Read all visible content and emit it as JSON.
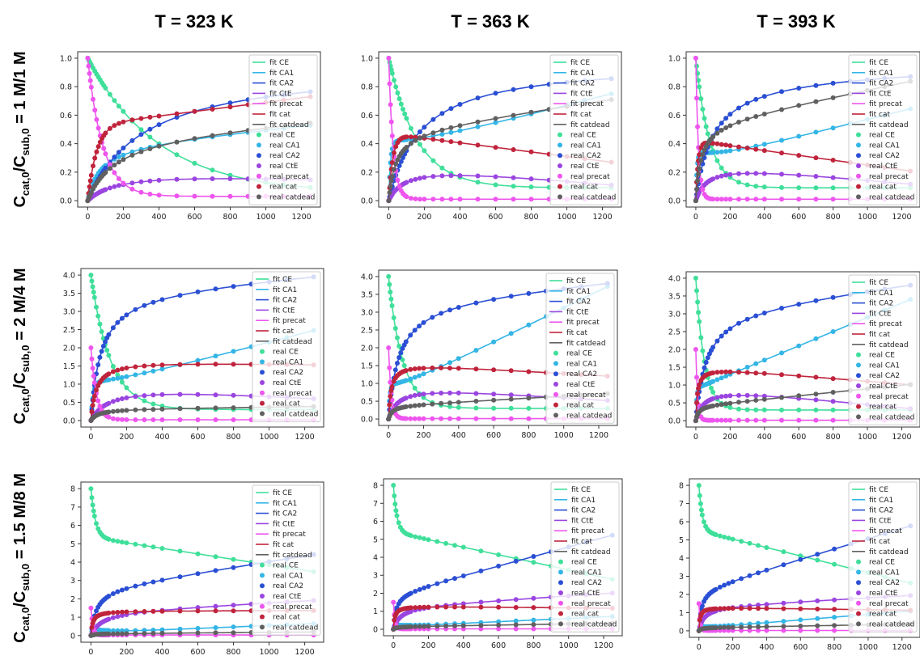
{
  "column_titles": [
    "T = 323 K",
    "T = 363 K",
    "T = 393 K"
  ],
  "row_labels": [
    {
      "main": "C",
      "sub1": "cat,0",
      "mid": "/C",
      "sub2": "sub,0",
      "rest": " = 1 M/1 M"
    },
    {
      "main": "C",
      "sub1": "cat,0",
      "mid": "/C",
      "sub2": "sub,0",
      "rest": " = 2 M/4 M"
    },
    {
      "main": "C",
      "sub1": "cat,0",
      "mid": "/C",
      "sub2": "sub,0",
      "rest": " = 1.5 M/8 M"
    }
  ],
  "legend": [
    "fit CE",
    "fit CA1",
    "fit CA2",
    "fit CtE",
    "fit precat",
    "fit cat",
    "fit catdead",
    "real CE",
    "real CA1",
    "real CA2",
    "real CtE",
    "real precat",
    "real cat",
    "real catdead"
  ],
  "colors": {
    "CE": "#3fdf9a",
    "CA1": "#33b5e6",
    "CA2": "#2a4fd4",
    "CtE": "#9a45e0",
    "precat": "#ee55ee",
    "cat": "#c0243c",
    "catdead": "#606060"
  },
  "chart_data": [
    {
      "type": "line",
      "row": 0,
      "col": 0,
      "title": "T = 323 K",
      "ylim": [
        0,
        1.0
      ],
      "yticks": [
        0.0,
        0.2,
        0.4,
        0.6,
        0.8,
        1.0
      ],
      "xlim": [
        0,
        1250
      ],
      "xticks": [
        0,
        200,
        400,
        600,
        800,
        1000,
        1200
      ],
      "series": [
        {
          "name": "CE",
          "k": "decay",
          "p": [
            1.0,
            0.05,
            400,
            0
          ]
        },
        {
          "name": "CA1",
          "k": "sat",
          "p": [
            0.5,
            0.4,
            70,
            0.00012,
            0
          ]
        },
        {
          "name": "CA2",
          "k": "sat",
          "p": [
            1.0,
            0.96,
            320,
            0,
            0
          ]
        },
        {
          "name": "CtE",
          "k": "sat",
          "p": [
            1.0,
            0.24,
            190,
            -5e-05,
            30
          ]
        },
        {
          "name": "precat",
          "k": "decay",
          "p": [
            1.0,
            0.03,
            85,
            0
          ]
        },
        {
          "name": "cat",
          "k": "rise",
          "p": [
            1.0,
            0.53,
            1.0,
            0.00016,
            -0.05,
            150,
            0.012
          ]
        },
        {
          "name": "catdead",
          "k": "sat",
          "p": [
            0.6,
            0.47,
            150,
            0.0001,
            0
          ]
        }
      ]
    },
    {
      "type": "line",
      "row": 0,
      "col": 1,
      "title": "T = 363 K",
      "ylim": [
        0,
        1.0
      ],
      "yticks": [
        0.0,
        0.2,
        0.4,
        0.6,
        0.8,
        1.0
      ],
      "xlim": [
        0,
        1250
      ],
      "xticks": [
        0,
        200,
        400,
        600,
        800,
        1000,
        1200
      ],
      "series": [
        {
          "name": "CE",
          "k": "decay",
          "p": [
            1.0,
            0.09,
            160,
            0
          ]
        },
        {
          "name": "CA1",
          "k": "rise",
          "p": [
            1.0,
            0.42,
            0.35,
            0.00032,
            -0.1,
            30,
            0.03
          ]
        },
        {
          "name": "CA2",
          "k": "sat",
          "p": [
            1.0,
            0.98,
            180,
            0,
            0
          ]
        },
        {
          "name": "CtE",
          "k": "sat",
          "p": [
            1.0,
            0.28,
            100,
            -0.00012,
            30
          ]
        },
        {
          "name": "precat",
          "k": "decay",
          "p": [
            1.0,
            0.01,
            25,
            0
          ]
        },
        {
          "name": "cat",
          "k": "rise",
          "p": [
            1.0,
            0.47,
            1.0,
            -0.00016,
            -0.05,
            70,
            0.025
          ]
        },
        {
          "name": "catdead",
          "k": "sat",
          "p": [
            0.6,
            0.5,
            40,
            0.00018,
            0
          ]
        }
      ]
    },
    {
      "type": "line",
      "row": 0,
      "col": 2,
      "title": "T = 393 K",
      "ylim": [
        0,
        1.0
      ],
      "yticks": [
        0.0,
        0.2,
        0.4,
        0.6,
        0.8,
        1.0
      ],
      "xlim": [
        0,
        1250
      ],
      "xticks": [
        0,
        200,
        400,
        600,
        800,
        1000,
        1200
      ],
      "series": [
        {
          "name": "CE",
          "k": "decay",
          "p": [
            1.0,
            0.09,
            80,
            0
          ]
        },
        {
          "name": "CA1",
          "k": "rise",
          "p": [
            1.0,
            0.34,
            0.27,
            0.0003,
            -0.1,
            20,
            0.03
          ]
        },
        {
          "name": "CA2",
          "k": "sat",
          "p": [
            1.0,
            0.9,
            100,
            3e-05,
            0
          ]
        },
        {
          "name": "CtE",
          "k": "sat",
          "p": [
            1.0,
            0.28,
            70,
            -0.00012,
            30
          ]
        },
        {
          "name": "precat",
          "k": "decay",
          "p": [
            1.0,
            0.01,
            15,
            0
          ]
        },
        {
          "name": "cat",
          "k": "rise",
          "p": [
            1.0,
            0.42,
            1.0,
            -0.00017,
            -0.05,
            40,
            0.04
          ]
        },
        {
          "name": "catdead",
          "k": "sat",
          "p": [
            0.6,
            0.55,
            30,
            0.00024,
            0
          ]
        }
      ]
    },
    {
      "type": "line",
      "row": 1,
      "col": 0,
      "title": "T = 323 K",
      "ylim": [
        0,
        4.0
      ],
      "yticks": [
        0.0,
        0.5,
        1.0,
        1.5,
        2.0,
        2.5,
        3.0,
        3.5,
        4.0
      ],
      "xlim": [
        0,
        1250
      ],
      "xticks": [
        0,
        200,
        400,
        600,
        800,
        1000,
        1200
      ],
      "series": [
        {
          "name": "CE",
          "k": "decay",
          "p": [
            4.0,
            0.3,
            110,
            0
          ]
        },
        {
          "name": "CA1",
          "k": "rise",
          "p": [
            1.0,
            1.05,
            0.85,
            0.0013,
            -0.2,
            35,
            0.05
          ]
        },
        {
          "name": "CA2",
          "k": "sat",
          "p": [
            4.0,
            3.6,
            55,
            0.0004,
            0
          ]
        },
        {
          "name": "CtE",
          "k": "sat",
          "p": [
            2.0,
            1.06,
            110,
            -0.0003,
            25
          ]
        },
        {
          "name": "precat",
          "k": "decay",
          "p": [
            2.0,
            0.02,
            30,
            0
          ]
        },
        {
          "name": "cat",
          "k": "sat",
          "p": [
            2.0,
            1.68,
            30,
            -9e-05,
            0
          ]
        },
        {
          "name": "catdead",
          "k": "sat",
          "p": [
            2.0,
            0.32,
            40,
            6e-05,
            0
          ]
        }
      ]
    },
    {
      "type": "line",
      "row": 1,
      "col": 1,
      "title": "T = 363 K",
      "ylim": [
        0,
        4.0
      ],
      "yticks": [
        0.0,
        0.5,
        1.0,
        1.5,
        2.0,
        2.5,
        3.0,
        3.5,
        4.0
      ],
      "xlim": [
        0,
        1250
      ],
      "xticks": [
        0,
        200,
        400,
        600,
        800,
        1000,
        1200
      ],
      "series": [
        {
          "name": "CE",
          "k": "decay",
          "p": [
            4.0,
            0.3,
            80,
            0
          ]
        },
        {
          "name": "CA1",
          "k": "rise",
          "p": [
            1.0,
            0.95,
            0.72,
            0.0024,
            -0.2,
            20,
            0.07
          ]
        },
        {
          "name": "CA2",
          "k": "sat",
          "p": [
            4.0,
            3.4,
            60,
            0.00045,
            0
          ]
        },
        {
          "name": "CtE",
          "k": "sat",
          "p": [
            2.0,
            1.0,
            60,
            -0.00035,
            25
          ]
        },
        {
          "name": "precat",
          "k": "decay",
          "p": [
            2.0,
            0.01,
            15,
            0
          ]
        },
        {
          "name": "cat",
          "k": "sat",
          "p": [
            2.0,
            1.6,
            15,
            -0.0003,
            0
          ]
        },
        {
          "name": "catdead",
          "k": "sat",
          "p": [
            2.0,
            0.38,
            20,
            0.00027,
            0
          ]
        }
      ]
    },
    {
      "type": "line",
      "row": 1,
      "col": 2,
      "title": "T = 393 K",
      "ylim": [
        0,
        4.0
      ],
      "yticks": [
        0.0,
        0.5,
        1.0,
        1.5,
        2.0,
        2.5,
        3.0,
        3.5,
        4.0
      ],
      "xlim": [
        0,
        1250
      ],
      "xticks": [
        0,
        200,
        400,
        600,
        800,
        1000,
        1200
      ],
      "series": [
        {
          "name": "CE",
          "k": "decay",
          "p": [
            4.0,
            0.3,
            50,
            0
          ]
        },
        {
          "name": "CA1",
          "k": "rise",
          "p": [
            1.0,
            0.9,
            0.9,
            0.002,
            -0.2,
            15,
            0.08
          ]
        },
        {
          "name": "CA2",
          "k": "sat",
          "p": [
            4.0,
            3.2,
            60,
            0.0006,
            0
          ]
        },
        {
          "name": "CtE",
          "k": "sat",
          "p": [
            2.0,
            1.0,
            50,
            -0.0005,
            25
          ]
        },
        {
          "name": "precat",
          "k": "decay",
          "p": [
            2.0,
            0.01,
            10,
            0
          ]
        },
        {
          "name": "cat",
          "k": "sat",
          "p": [
            2.0,
            1.52,
            10,
            -0.0004,
            0
          ]
        },
        {
          "name": "catdead",
          "k": "sat",
          "p": [
            2.0,
            0.42,
            15,
            0.00048,
            0
          ]
        }
      ]
    },
    {
      "type": "line",
      "row": 2,
      "col": 0,
      "title": "T = 323 K",
      "ylim": [
        0,
        8
      ],
      "yticks": [
        0,
        1,
        2,
        3,
        4,
        5,
        6,
        7,
        8
      ],
      "xlim": [
        0,
        1250
      ],
      "xticks": [
        0,
        200,
        400,
        600,
        800,
        1000,
        1200
      ],
      "series": [
        {
          "name": "CE",
          "k": "decay",
          "p": [
            8.0,
            5.35,
            25,
            -0.0015
          ]
        },
        {
          "name": "CA1",
          "k": "rise",
          "p": [
            1.0,
            0.35,
            0.15,
            0.0004,
            -0.1,
            15,
            0.06
          ]
        },
        {
          "name": "CA2",
          "k": "sat",
          "p": [
            8.0,
            2.6,
            30,
            0.0015,
            0
          ]
        },
        {
          "name": "CtE",
          "k": "sat",
          "p": [
            2.0,
            1.35,
            60,
            0.0005,
            0
          ]
        },
        {
          "name": "precat",
          "k": "decay",
          "p": [
            1.5,
            0.03,
            10,
            0
          ]
        },
        {
          "name": "cat",
          "k": "sat",
          "p": [
            2.0,
            1.35,
            10,
            2e-05,
            0
          ]
        },
        {
          "name": "catdead",
          "k": "sat",
          "p": [
            2.0,
            0.1,
            20,
            8e-05,
            0
          ]
        }
      ]
    },
    {
      "type": "line",
      "row": 2,
      "col": 1,
      "title": "T = 363 K",
      "ylim": [
        0,
        8
      ],
      "yticks": [
        0,
        1,
        2,
        3,
        4,
        5,
        6,
        7,
        8
      ],
      "xlim": [
        0,
        1250
      ],
      "xticks": [
        0,
        200,
        400,
        600,
        800,
        1000,
        1200
      ],
      "series": [
        {
          "name": "CE",
          "k": "decay",
          "p": [
            8.0,
            5.4,
            20,
            -0.0021
          ]
        },
        {
          "name": "CA1",
          "k": "rise",
          "p": [
            1.0,
            0.25,
            0.15,
            0.00045,
            -0.1,
            10,
            0.08
          ]
        },
        {
          "name": "CA2",
          "k": "sat",
          "p": [
            8.0,
            2.0,
            15,
            0.0026,
            0
          ]
        },
        {
          "name": "CtE",
          "k": "sat",
          "p": [
            2.0,
            1.3,
            40,
            0.0006,
            0
          ]
        },
        {
          "name": "precat",
          "k": "decay",
          "p": [
            1.5,
            0.02,
            8,
            0
          ]
        },
        {
          "name": "cat",
          "k": "sat",
          "p": [
            2.0,
            1.3,
            8,
            -0.0001,
            0
          ]
        },
        {
          "name": "catdead",
          "k": "sat",
          "p": [
            2.0,
            0.14,
            15,
            0.00016,
            0
          ]
        }
      ]
    },
    {
      "type": "line",
      "row": 2,
      "col": 2,
      "title": "T = 393 K",
      "ylim": [
        0,
        8
      ],
      "yticks": [
        0,
        1,
        2,
        3,
        4,
        5,
        6,
        7,
        8
      ],
      "xlim": [
        0,
        1250
      ],
      "xticks": [
        0,
        200,
        400,
        600,
        800,
        1000,
        1200
      ],
      "series": [
        {
          "name": "CE",
          "k": "decay",
          "p": [
            8.0,
            5.5,
            20,
            -0.0023
          ]
        },
        {
          "name": "CA1",
          "k": "rise",
          "p": [
            1.0,
            0.25,
            0.15,
            0.00075,
            -0.1,
            8,
            0.08
          ]
        },
        {
          "name": "CA2",
          "k": "sat",
          "p": [
            8.0,
            2.3,
            15,
            0.0028,
            0
          ]
        },
        {
          "name": "CtE",
          "k": "sat",
          "p": [
            2.0,
            1.35,
            30,
            0.0005,
            0
          ]
        },
        {
          "name": "precat",
          "k": "decay",
          "p": [
            1.5,
            0.02,
            6,
            0
          ]
        },
        {
          "name": "cat",
          "k": "sat",
          "p": [
            2.0,
            1.3,
            6,
            -0.00013,
            0
          ]
        },
        {
          "name": "catdead",
          "k": "sat",
          "p": [
            2.0,
            0.17,
            12,
            0.00016,
            0
          ]
        }
      ]
    }
  ]
}
